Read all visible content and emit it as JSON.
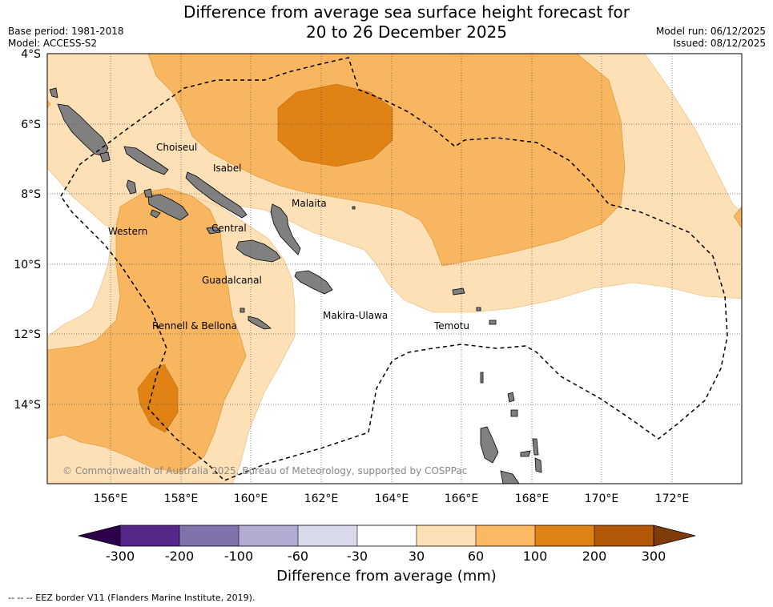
{
  "header": {
    "title_line1": "Difference from average sea surface height forecast for",
    "title_line2": "20 to 26 December 2025",
    "base_period": "Base period: 1981-2018",
    "model": "Model: ACCESS-S2",
    "model_run": "Model run: 06/12/2025",
    "issued": "Issued: 08/12/2025"
  },
  "map": {
    "lat_labels": [
      "4°S",
      "6°S",
      "8°S",
      "10°S",
      "12°S",
      "14°S"
    ],
    "lon_labels": [
      "156°E",
      "158°E",
      "160°E",
      "162°E",
      "164°E",
      "166°E",
      "168°E",
      "170°E",
      "172°E"
    ],
    "provinces": [
      "Choiseul",
      "Isabel",
      "Malaita",
      "Western",
      "Central",
      "Guadalcanal",
      "Makira-Ulawa",
      "Rennell & Bellona",
      "Temotu"
    ],
    "copyright": "© Commonwealth of Australia 2025, Bureau of Meteorology, supported by COSPPac",
    "colors": {
      "band_30_60": "#fde0b6",
      "band_60_100": "#f9b661",
      "band_100_200": "#e08214",
      "land": "#808080",
      "eez_line": "#000000"
    }
  },
  "colorbar": {
    "ticks": [
      "-300",
      "-200",
      "-100",
      "-60",
      "-30",
      "30",
      "60",
      "100",
      "200",
      "300"
    ],
    "colors": [
      "#542788",
      "#8073ac",
      "#b2abd2",
      "#d8daeb",
      "#ffffff",
      "#fee0b6",
      "#fdb863",
      "#e08214",
      "#b35806"
    ],
    "under_color": "#2d004b",
    "over_color": "#7f3b08",
    "label": "Difference from average (mm)"
  },
  "footnote": "--  --  -- EEZ border V11 (Flanders Marine Institute, 2019)."
}
